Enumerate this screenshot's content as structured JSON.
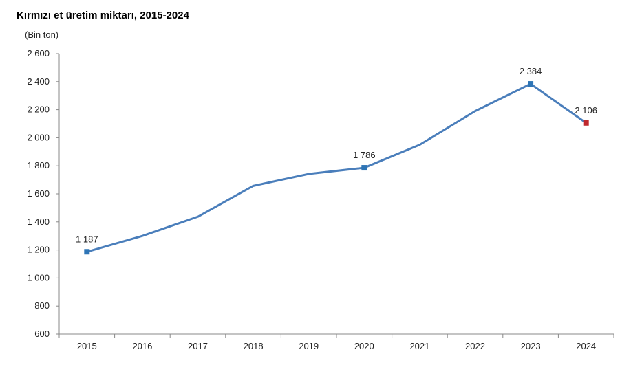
{
  "chart_data": {
    "type": "line",
    "title": "Kırmızı et üretim miktarı, 2015-2024",
    "unit_label": "(Bin ton)",
    "xlabel": "",
    "ylabel": "",
    "categories": [
      "2015",
      "2016",
      "2017",
      "2018",
      "2019",
      "2020",
      "2021",
      "2022",
      "2023",
      "2024"
    ],
    "series": [
      {
        "values": [
          1187,
          1300,
          1437,
          1657,
          1742,
          1786,
          1950,
          2190,
          2384,
          2106
        ],
        "color": "#4a7ebb"
      }
    ],
    "ylim": [
      600,
      2600
    ],
    "yticks": [
      600,
      800,
      1000,
      1200,
      1400,
      1600,
      1800,
      2000,
      2200,
      2400,
      2600
    ],
    "ytick_labels": [
      "600",
      "800",
      "1 000",
      "1 200",
      "1 400",
      "1 600",
      "1 800",
      "2 000",
      "2 200",
      "2 400",
      "2 600"
    ],
    "markers": [
      {
        "category": "2015",
        "value": 1187,
        "label": "1 187",
        "color": "#2e75b6"
      },
      {
        "category": "2020",
        "value": 1786,
        "label": "1 786",
        "color": "#2e75b6"
      },
      {
        "category": "2023",
        "value": 2384,
        "label": "2 384",
        "color": "#2e75b6"
      },
      {
        "category": "2024",
        "value": 2106,
        "label": "2 106",
        "color": "#c0282d"
      }
    ],
    "grid": false,
    "axis_color": "#888888"
  }
}
